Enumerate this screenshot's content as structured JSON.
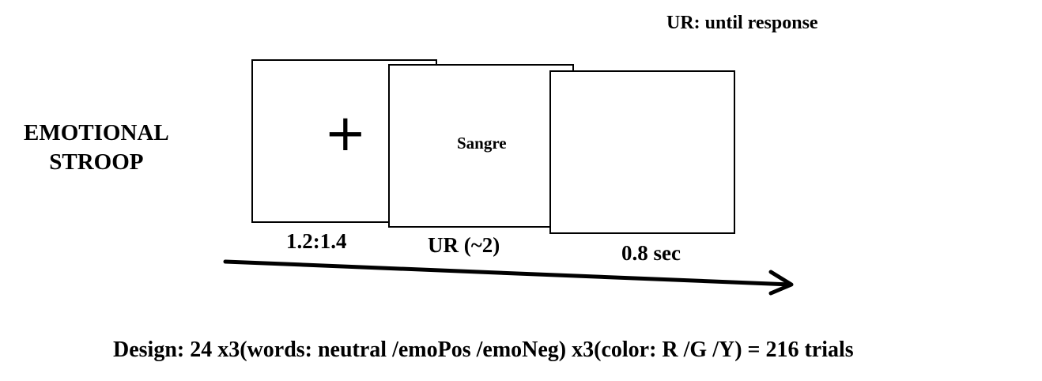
{
  "legend": "UR: until response",
  "title": {
    "line1": "EMOTIONAL",
    "line2": "STROOP"
  },
  "screens": [
    {
      "content": "+",
      "label": "1.2:1.4"
    },
    {
      "content": "Sangre",
      "label": "UR (~2)"
    },
    {
      "content": "",
      "label": "0.8 sec"
    }
  ],
  "design": "Design: 24 x3(words: neutral /emoPos /emoNeg) x3(color: R /G /Y) =  216 trials"
}
